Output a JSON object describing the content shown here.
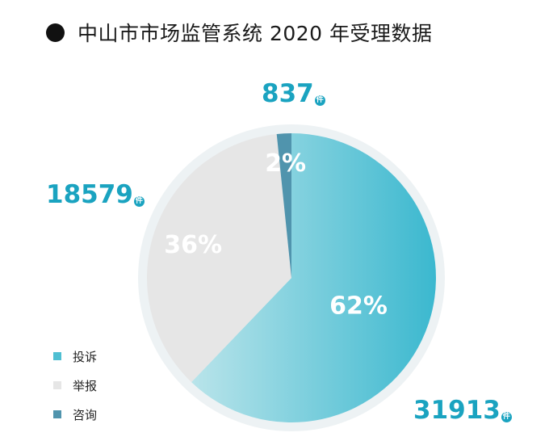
{
  "title": "中山市市场监管系统 2020 年受理数据",
  "unit_label": "件",
  "chart_data": {
    "type": "pie",
    "categories": [
      "投诉",
      "举报",
      "咨询"
    ],
    "values": [
      31913,
      18579,
      837
    ],
    "value_labels": [
      "31913",
      "18579",
      "837"
    ],
    "percent_labels": [
      "62%",
      "36%",
      "2%"
    ],
    "colors": [
      "#4fbfd2",
      "#e6e6e6",
      "#5094ad"
    ],
    "legend_position": "bottom-left"
  }
}
